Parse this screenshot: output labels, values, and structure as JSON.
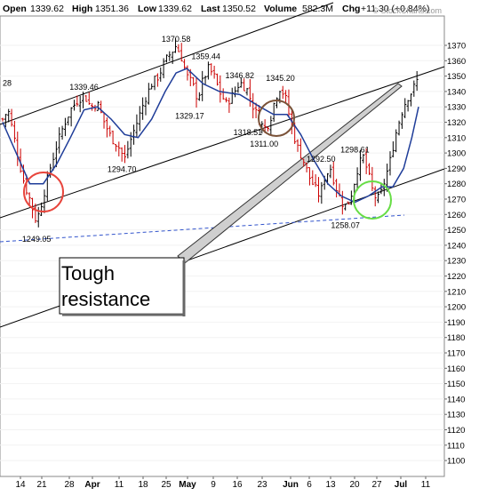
{
  "header": {
    "open_label": "Open",
    "open_value": "1339.62",
    "high_label": "High",
    "high_value": "1351.36",
    "low_label": "Low",
    "low_value": "1339.62",
    "last_label": "Last",
    "last_value": "1350.52",
    "volume_label": "Volume",
    "volume_value": "582.3M",
    "chg_label": "Chg",
    "chg_value": "+11.30 (+0.84%)"
  },
  "watermark": "© StockCharts.com",
  "callout_lines": [
    "Tough",
    "resistance"
  ],
  "colors": {
    "candle": "#000000",
    "down_candle": "#cc0000",
    "moving_average": "#1f3d99",
    "support_dashed": "#3355cc",
    "red_circle": "#e8453c",
    "brown_circle": "#7a5238",
    "green_circle": "#66dd44",
    "channel": "#000000"
  },
  "chart_data": {
    "type": "candlestick",
    "x_tick_labels": [
      "14",
      "21",
      "28",
      "Apr",
      "11",
      "18",
      "25",
      "May",
      "9",
      "16",
      "23",
      "Jun",
      "6",
      "13",
      "20",
      "27",
      "Jul",
      "11"
    ],
    "y_ticks": [
      1100,
      1110,
      1120,
      1130,
      1140,
      1150,
      1160,
      1170,
      1180,
      1190,
      1200,
      1210,
      1220,
      1230,
      1240,
      1250,
      1260,
      1270,
      1280,
      1290,
      1300,
      1310,
      1320,
      1330,
      1340,
      1350,
      1360,
      1370
    ],
    "ylim": [
      1095,
      1380
    ],
    "price_path": [
      [
        0,
        1322
      ],
      [
        4,
        1328
      ],
      [
        8,
        1312
      ],
      [
        12,
        1295
      ],
      [
        16,
        1280
      ],
      [
        20,
        1270
      ],
      [
        25,
        1255
      ],
      [
        30,
        1272
      ],
      [
        35,
        1290
      ],
      [
        40,
        1305
      ],
      [
        45,
        1318
      ],
      [
        50,
        1328
      ],
      [
        55,
        1334
      ],
      [
        60,
        1338
      ],
      [
        65,
        1330
      ],
      [
        70,
        1332
      ],
      [
        75,
        1320
      ],
      [
        80,
        1310
      ],
      [
        85,
        1305
      ],
      [
        90,
        1296
      ],
      [
        95,
        1310
      ],
      [
        100,
        1322
      ],
      [
        105,
        1335
      ],
      [
        110,
        1345
      ],
      [
        115,
        1350
      ],
      [
        120,
        1360
      ],
      [
        125,
        1366
      ],
      [
        128,
        1370
      ],
      [
        132,
        1362
      ],
      [
        136,
        1350
      ],
      [
        140,
        1345
      ],
      [
        144,
        1335
      ],
      [
        148,
        1348
      ],
      [
        152,
        1355
      ],
      [
        156,
        1350
      ],
      [
        160,
        1340
      ],
      [
        165,
        1332
      ],
      [
        170,
        1338
      ],
      [
        175,
        1346
      ],
      [
        180,
        1342
      ],
      [
        185,
        1330
      ],
      [
        190,
        1320
      ],
      [
        193,
        1316
      ],
      [
        197,
        1320
      ],
      [
        201,
        1335
      ],
      [
        205,
        1343
      ],
      [
        209,
        1335
      ],
      [
        213,
        1318
      ],
      [
        217,
        1305
      ],
      [
        222,
        1295
      ],
      [
        226,
        1285
      ],
      [
        230,
        1278
      ],
      [
        234,
        1272
      ],
      [
        238,
        1285
      ],
      [
        242,
        1290
      ],
      [
        246,
        1278
      ],
      [
        250,
        1268
      ],
      [
        254,
        1265
      ],
      [
        258,
        1275
      ],
      [
        262,
        1290
      ],
      [
        266,
        1298
      ],
      [
        270,
        1286
      ],
      [
        274,
        1272
      ],
      [
        278,
        1270
      ],
      [
        282,
        1282
      ],
      [
        286,
        1295
      ],
      [
        290,
        1312
      ],
      [
        294,
        1325
      ],
      [
        298,
        1335
      ],
      [
        302,
        1340
      ],
      [
        305,
        1345
      ],
      [
        307,
        1350
      ]
    ],
    "moving_average": [
      [
        0,
        1320
      ],
      [
        10,
        1300
      ],
      [
        20,
        1280
      ],
      [
        30,
        1280
      ],
      [
        40,
        1293
      ],
      [
        50,
        1310
      ],
      [
        60,
        1328
      ],
      [
        70,
        1330
      ],
      [
        80,
        1322
      ],
      [
        90,
        1312
      ],
      [
        100,
        1310
      ],
      [
        110,
        1322
      ],
      [
        120,
        1340
      ],
      [
        128,
        1352
      ],
      [
        136,
        1355
      ],
      [
        148,
        1345
      ],
      [
        160,
        1340
      ],
      [
        175,
        1338
      ],
      [
        190,
        1330
      ],
      [
        200,
        1325
      ],
      [
        210,
        1325
      ],
      [
        220,
        1312
      ],
      [
        230,
        1295
      ],
      [
        240,
        1280
      ],
      [
        250,
        1272
      ],
      [
        260,
        1268
      ],
      [
        270,
        1272
      ],
      [
        280,
        1278
      ],
      [
        288,
        1278
      ],
      [
        296,
        1290
      ],
      [
        302,
        1310
      ],
      [
        307,
        1330
      ]
    ],
    "annotations": [
      {
        "label": "1370.58",
        "x": 128,
        "y": 1370.58
      },
      {
        "label": "1359.44",
        "x": 150,
        "y": 1359.44
      },
      {
        "label": "1346.82",
        "x": 175,
        "y": 1346.82
      },
      {
        "label": "1345.20",
        "x": 205,
        "y": 1345.2
      },
      {
        "label": "1339.46",
        "x": 60,
        "y": 1339.46
      },
      {
        "label": "1329.17",
        "x": 138,
        "y": 1329.17
      },
      {
        "label": "1318.51",
        "x": 181,
        "y": 1318.51
      },
      {
        "label": "1311.00",
        "x": 193,
        "y": 1311.0
      },
      {
        "label": "1298.61",
        "x": 260,
        "y": 1298.61
      },
      {
        "label": "1294.70",
        "x": 88,
        "y": 1294.7
      },
      {
        "label": "1292.50",
        "x": 235,
        "y": 1292.5
      },
      {
        "label": "1258.07",
        "x": 253,
        "y": 1258.07
      },
      {
        "label": "1249.05",
        "x": 25,
        "y": 1249.05
      },
      {
        "label": "28",
        "x": 0,
        "y": 1342
      }
    ]
  }
}
